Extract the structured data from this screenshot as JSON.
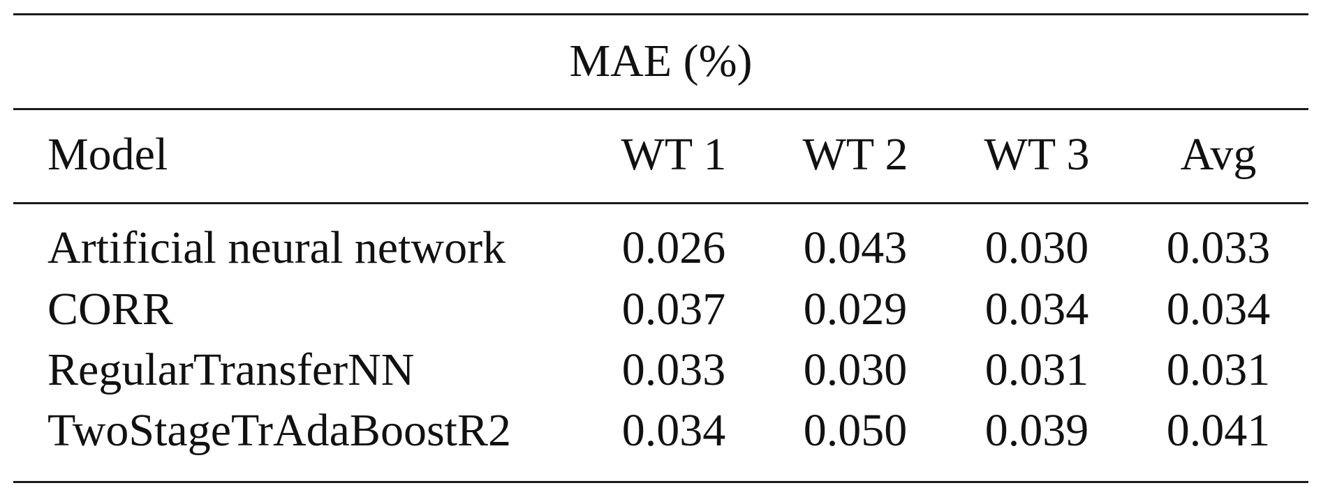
{
  "table": {
    "caption": "MAE (%)",
    "columns": [
      "Model",
      "WT 1",
      "WT 2",
      "WT 3",
      "Avg"
    ],
    "rows": [
      {
        "model": "Artificial neural network",
        "wt1": "0.026",
        "wt2": "0.043",
        "wt3": "0.030",
        "avg": "0.033"
      },
      {
        "model": "CORR",
        "wt1": "0.037",
        "wt2": "0.029",
        "wt3": "0.034",
        "avg": "0.034"
      },
      {
        "model": "RegularTransferNN",
        "wt1": "0.033",
        "wt2": "0.030",
        "wt3": "0.031",
        "avg": "0.031"
      },
      {
        "model": "TwoStageTrAdaBoostR2",
        "wt1": "0.034",
        "wt2": "0.050",
        "wt3": "0.039",
        "avg": "0.041"
      }
    ]
  }
}
